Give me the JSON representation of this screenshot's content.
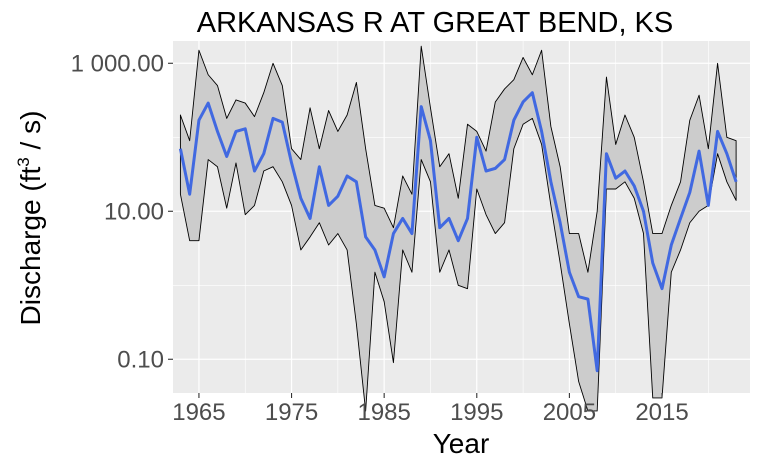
{
  "chart_data": {
    "type": "line",
    "title": "ARKANSAS R AT GREAT BEND, KS",
    "xlabel": "Year",
    "ylabel": "Discharge",
    "ylabel_unit_base": "ft",
    "ylabel_unit_sup": "3",
    "ylabel_unit_tail": " / s)",
    "y_scale": "log10",
    "ylim": [
      0.035,
      2000
    ],
    "xlim": [
      1962.2,
      2024.5
    ],
    "grid": true,
    "legend": "none",
    "x_ticks": [
      1965,
      1975,
      1985,
      1995,
      2005,
      2015
    ],
    "x_tick_labels": [
      "1965",
      "1975",
      "1985",
      "1995",
      "2005",
      "2015"
    ],
    "y_ticks": [
      0.1,
      10,
      1000
    ],
    "y_tick_labels": [
      "0.10",
      "10.00",
      "1 000.00"
    ],
    "colors": {
      "line": "#4169e1",
      "band_fill": "#cccccc",
      "band_stroke": "#000000",
      "panel": "#ebebeb"
    },
    "series": [
      {
        "role": "median",
        "x": [
          1963,
          1964,
          1965,
          1966,
          1967,
          1968,
          1969,
          1970,
          1971,
          1972,
          1973,
          1974,
          1975,
          1976,
          1977,
          1978,
          1979,
          1980,
          1981,
          1982,
          1983,
          1984,
          1985,
          1986,
          1987,
          1988,
          1989,
          1990,
          1991,
          1992,
          1993,
          1994,
          1995,
          1996,
          1997,
          1998,
          1999,
          2000,
          2001,
          2002,
          2003,
          2004,
          2005,
          2006,
          2007,
          2008,
          2009,
          2010,
          2011,
          2012,
          2013,
          2014,
          2015,
          2016,
          2017,
          2018,
          2019,
          2020,
          2021,
          2022,
          2023
        ],
        "y": [
          70,
          17,
          170,
          290,
          120,
          55,
          120,
          130,
          35,
          60,
          180,
          160,
          45,
          15,
          8,
          40,
          12,
          16,
          30,
          25,
          4.5,
          3,
          1.3,
          5,
          8,
          5,
          260,
          90,
          6,
          8,
          4,
          8,
          100,
          35,
          38,
          50,
          170,
          300,
          400,
          120,
          25,
          7,
          1.5,
          0.7,
          0.65,
          0.07,
          60,
          28,
          35,
          22,
          10,
          2,
          0.9,
          3.5,
          8,
          18,
          65,
          12,
          120,
          60,
          25
        ]
      },
      {
        "role": "upper",
        "x": [
          1963,
          1964,
          1965,
          1966,
          1967,
          1968,
          1969,
          1970,
          1971,
          1972,
          1973,
          1974,
          1975,
          1976,
          1977,
          1978,
          1979,
          1980,
          1981,
          1982,
          1983,
          1984,
          1985,
          1986,
          1987,
          1988,
          1989,
          1990,
          1991,
          1992,
          1993,
          1994,
          1995,
          1996,
          1997,
          1998,
          1999,
          2000,
          2001,
          2002,
          2003,
          2004,
          2005,
          2006,
          2007,
          2008,
          2009,
          2010,
          2011,
          2012,
          2013,
          2014,
          2015,
          2016,
          2017,
          2018,
          2019,
          2020,
          2021,
          2022,
          2023
        ],
        "y": [
          200,
          90,
          1500,
          700,
          500,
          180,
          320,
          290,
          190,
          400,
          1000,
          500,
          70,
          50,
          250,
          70,
          230,
          120,
          200,
          550,
          70,
          12,
          11,
          6,
          30,
          17,
          1700,
          250,
          40,
          60,
          15,
          150,
          120,
          65,
          300,
          450,
          600,
          1200,
          700,
          1500,
          140,
          40,
          5,
          5,
          1.5,
          10,
          650,
          80,
          200,
          100,
          25,
          5,
          5,
          12,
          25,
          170,
          370,
          70,
          1000,
          100,
          90
        ]
      },
      {
        "role": "lower",
        "x": [
          1963,
          1964,
          1965,
          1966,
          1967,
          1968,
          1969,
          1970,
          1971,
          1972,
          1973,
          1974,
          1975,
          1976,
          1977,
          1978,
          1979,
          1980,
          1981,
          1982,
          1983,
          1984,
          1985,
          1986,
          1987,
          1988,
          1989,
          1990,
          1991,
          1992,
          1993,
          1994,
          1995,
          1996,
          1997,
          1998,
          1999,
          2000,
          2001,
          2002,
          2003,
          2004,
          2005,
          2006,
          2007,
          2008,
          2009,
          2010,
          2011,
          2012,
          2013,
          2014,
          2015,
          2016,
          2017,
          2018,
          2019,
          2020,
          2021,
          2022,
          2023
        ],
        "y": [
          17,
          4,
          4,
          50,
          40,
          11,
          45,
          9,
          12,
          35,
          40,
          25,
          12,
          3,
          4.5,
          7,
          3.5,
          5,
          3,
          0.3,
          0.02,
          1.5,
          0.6,
          0.09,
          3,
          1.5,
          50,
          25,
          1.5,
          3,
          1,
          0.9,
          20,
          9,
          5,
          7,
          70,
          150,
          180,
          80,
          12,
          2,
          0.3,
          0.05,
          0.02,
          0.02,
          20,
          20,
          25,
          15,
          5,
          0.03,
          0.03,
          1.5,
          3,
          7,
          10,
          12,
          60,
          25,
          14
        ]
      }
    ]
  }
}
